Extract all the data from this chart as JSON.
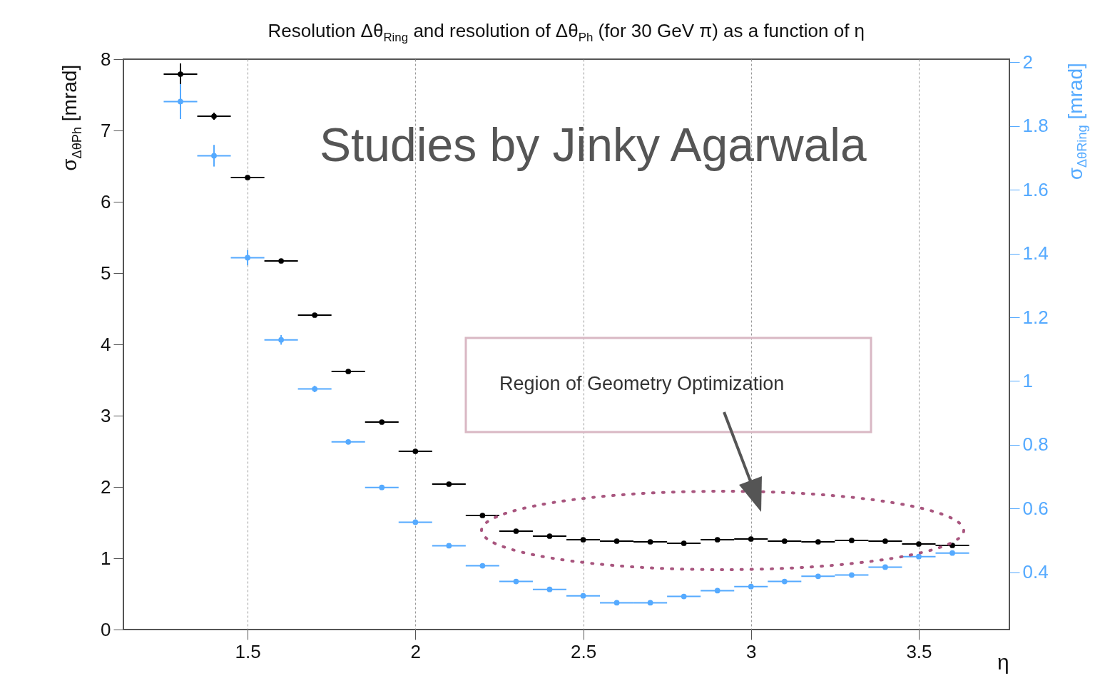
{
  "chart_data": {
    "type": "scatter",
    "title": "Resolution Δθ$_{Ring}$ and resolution of Δθ$_{Ph}$ (for 30 GeV π) as a function of η",
    "xlabel": "η",
    "ylabel": "σ$_{ΔθPh}$ [mrad]",
    "y2label": "σ$_{ΔθRing}$ [mrad]",
    "annotations": [
      "Studies by Jinky Agarwala",
      "Region of Geometry Optimization"
    ],
    "x": [
      1.3,
      1.4,
      1.5,
      1.6,
      1.7,
      1.8,
      1.9,
      2.0,
      2.1,
      2.2,
      2.3,
      2.4,
      2.5,
      2.6,
      2.7,
      2.8,
      2.9,
      3.0,
      3.1,
      3.2,
      3.3,
      3.4,
      3.5,
      3.6
    ],
    "series": [
      {
        "color": "#000000",
        "values": [
          7.79,
          7.2,
          6.34,
          5.17,
          4.41,
          3.62,
          2.91,
          2.5,
          2.04,
          1.6,
          1.38,
          1.31,
          1.26,
          1.24,
          1.23,
          1.21,
          1.26,
          1.27,
          1.24,
          1.23,
          1.25,
          1.24,
          1.2,
          1.18
        ],
        "errors": [
          0.15,
          0.05,
          null,
          null,
          null,
          null,
          null,
          null,
          null,
          null,
          null,
          null,
          null,
          null,
          null,
          null,
          null,
          null,
          null,
          null,
          null,
          null,
          null,
          null
        ],
        "xerrors": [
          0.05,
          0.05,
          0.05,
          0.05,
          0.05,
          0.05,
          0.05,
          0.05,
          0.05,
          0.05,
          0.05,
          0.05,
          0.05,
          0.05,
          0.05,
          0.05,
          0.05,
          0.05,
          0.05,
          0.05,
          0.05,
          0.05,
          0.05,
          0.05
        ]
      },
      {
        "color": "#55aaff",
        "axis": "y2",
        "values": [
          1.877,
          1.707,
          1.387,
          1.129,
          0.975,
          0.809,
          0.666,
          0.557,
          0.483,
          0.42,
          0.371,
          0.346,
          0.326,
          0.304,
          0.304,
          0.324,
          0.342,
          0.355,
          0.371,
          0.387,
          0.391,
          0.416,
          0.449,
          0.46
        ],
        "errors": [
          0.055,
          0.034,
          0.024,
          0.015,
          0.01,
          null,
          null,
          null,
          null,
          null,
          null,
          null,
          null,
          null,
          null,
          null,
          null,
          null,
          null,
          null,
          null,
          null,
          null,
          null
        ],
        "xerrors": [
          0.05,
          0.05,
          0.05,
          0.05,
          0.05,
          0.05,
          0.05,
          0.05,
          0.05,
          0.05,
          0.05,
          0.05,
          0.05,
          0.05,
          0.05,
          0.05,
          0.05,
          0.05,
          0.05,
          0.05,
          0.05,
          0.05,
          0.05,
          0.05
        ]
      }
    ],
    "xlim": [
      1.13,
      3.77
    ],
    "xticks": [
      1.5,
      2,
      2.5,
      3,
      3.5
    ],
    "ylim": [
      0,
      8
    ],
    "yticks": [
      0,
      1,
      2,
      3,
      4,
      5,
      6,
      7,
      8
    ],
    "y2lim": [
      0.22,
      2.01
    ],
    "y2ticks": [
      0.4,
      0.6,
      0.8,
      1,
      1.2,
      1.4,
      1.6,
      1.8,
      2
    ],
    "grid": "x",
    "marker": "circle"
  }
}
